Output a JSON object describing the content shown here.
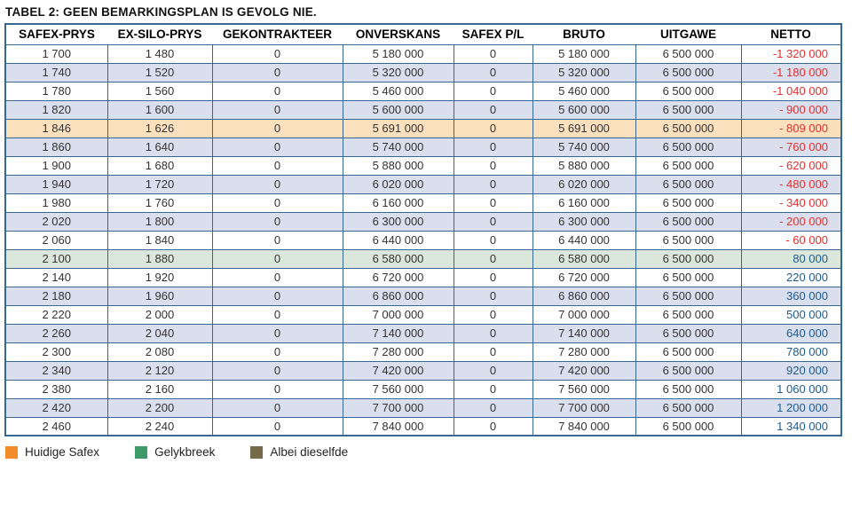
{
  "title": "TABEL 2: GEEN BEMARKINGSPLAN IS GEVOLG NIE.",
  "colors": {
    "border": "#38678F",
    "stripe_blue": "#D9DFED",
    "highlight_orange": "#FBE0BD",
    "highlight_green": "#DBE7DB",
    "netto_negative": "#E12F2F",
    "netto_positive": "#1D5A8E"
  },
  "table": {
    "columns": [
      "SAFEX-PRYS",
      "EX-SILO-PRYS",
      "GEKONTRAKTEER",
      "ONVERSKANS",
      "SAFEX P/L",
      "BRUTO",
      "UITGAWE",
      "NETTO"
    ],
    "column_keys": [
      "safex-prys",
      "ex-silo-prys",
      "gekontrakteer",
      "onverskans",
      "safex-pl",
      "bruto",
      "uitgawe",
      "netto"
    ],
    "highlights": [
      {
        "row_index": 4,
        "type": "huidige-safex"
      },
      {
        "row_index": 11,
        "type": "gelykbreek"
      }
    ],
    "rows": [
      [
        "1 700",
        "1 480",
        "0",
        "5 180 000",
        "0",
        "5 180 000",
        "6 500 000",
        "-1 320 000"
      ],
      [
        "1 740",
        "1 520",
        "0",
        "5 320 000",
        "0",
        "5 320 000",
        "6 500 000",
        "-1 180 000"
      ],
      [
        "1 780",
        "1 560",
        "0",
        "5 460 000",
        "0",
        "5 460 000",
        "6 500 000",
        "-1 040 000"
      ],
      [
        "1 820",
        "1 600",
        "0",
        "5 600 000",
        "0",
        "5 600 000",
        "6 500 000",
        "- 900 000"
      ],
      [
        "1 846",
        "1 626",
        "0",
        "5 691 000",
        "0",
        "5 691 000",
        "6 500 000",
        "- 809 000"
      ],
      [
        "1 860",
        "1 640",
        "0",
        "5 740 000",
        "0",
        "5 740 000",
        "6 500 000",
        "- 760 000"
      ],
      [
        "1 900",
        "1 680",
        "0",
        "5 880 000",
        "0",
        "5 880 000",
        "6 500 000",
        "- 620 000"
      ],
      [
        "1 940",
        "1 720",
        "0",
        "6 020 000",
        "0",
        "6 020 000",
        "6 500 000",
        "- 480 000"
      ],
      [
        "1 980",
        "1 760",
        "0",
        "6 160 000",
        "0",
        "6 160 000",
        "6 500 000",
        "- 340 000"
      ],
      [
        "2 020",
        "1 800",
        "0",
        "6 300 000",
        "0",
        "6 300 000",
        "6 500 000",
        "- 200 000"
      ],
      [
        "2 060",
        "1 840",
        "0",
        "6 440 000",
        "0",
        "6 440 000",
        "6 500 000",
        "- 60 000"
      ],
      [
        "2 100",
        "1 880",
        "0",
        "6 580 000",
        "0",
        "6 580 000",
        "6 500 000",
        "80 000"
      ],
      [
        "2 140",
        "1 920",
        "0",
        "6 720 000",
        "0",
        "6 720 000",
        "6 500 000",
        "220 000"
      ],
      [
        "2 180",
        "1 960",
        "0",
        "6 860 000",
        "0",
        "6 860 000",
        "6 500 000",
        "360 000"
      ],
      [
        "2 220",
        "2 000",
        "0",
        "7 000 000",
        "0",
        "7 000 000",
        "6 500 000",
        "500 000"
      ],
      [
        "2 260",
        "2 040",
        "0",
        "7 140 000",
        "0",
        "7 140 000",
        "6 500 000",
        "640 000"
      ],
      [
        "2 300",
        "2 080",
        "0",
        "7 280 000",
        "0",
        "7 280 000",
        "6 500 000",
        "780 000"
      ],
      [
        "2 340",
        "2 120",
        "0",
        "7 420 000",
        "0",
        "7 420 000",
        "6 500 000",
        "920 000"
      ],
      [
        "2 380",
        "2 160",
        "0",
        "7 560 000",
        "0",
        "7 560 000",
        "6 500 000",
        "1 060 000"
      ],
      [
        "2 420",
        "2 200",
        "0",
        "7 700 000",
        "0",
        "7 700 000",
        "6 500 000",
        "1 200 000"
      ],
      [
        "2 460",
        "2 240",
        "0",
        "7 840 000",
        "0",
        "7 840 000",
        "6 500 000",
        "1 340 000"
      ]
    ]
  },
  "legend": [
    {
      "key": "huidige-safex",
      "label": "Huidige Safex",
      "color": "#F28C28"
    },
    {
      "key": "gelykbreek",
      "label": "Gelykbreek",
      "color": "#3E9A68"
    },
    {
      "key": "albei-dieselfde",
      "label": "Albei dieselfde",
      "color": "#756B4B"
    }
  ]
}
